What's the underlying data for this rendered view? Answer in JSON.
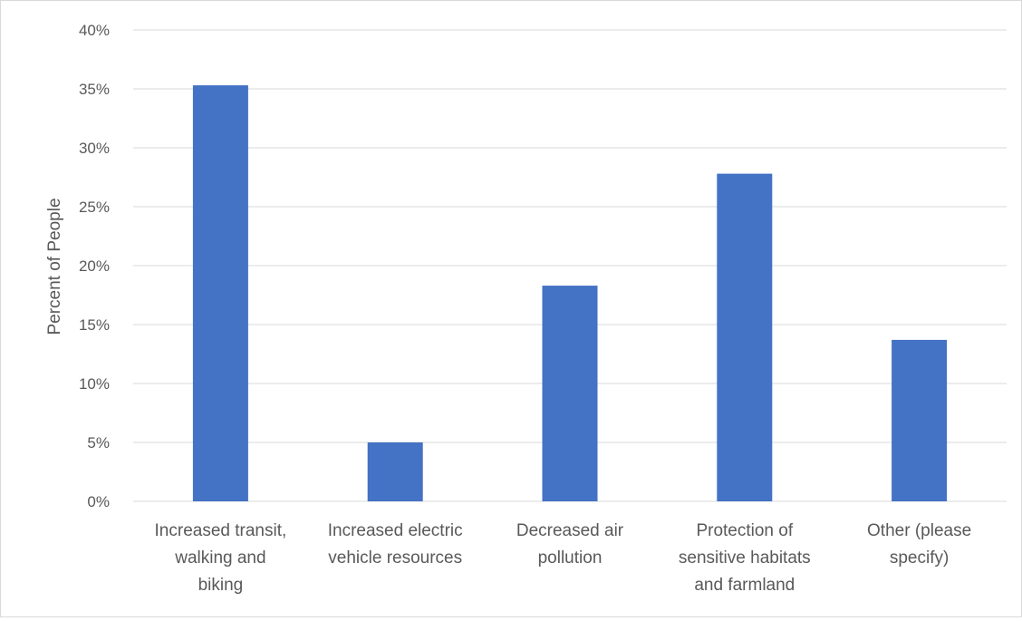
{
  "chart_data": {
    "type": "bar",
    "title": "",
    "xlabel": "",
    "ylabel": "Percent of People",
    "ylim": [
      0,
      40
    ],
    "yticks": [
      "0%",
      "5%",
      "10%",
      "15%",
      "20%",
      "25%",
      "30%",
      "35%",
      "40%"
    ],
    "grid": true,
    "legend": "none",
    "bar_color": "#4472c4",
    "grid_color": "#d9d9d9",
    "categories": [
      [
        "Increased transit,",
        "walking and",
        "biking"
      ],
      [
        "Increased electric",
        "vehicle resources"
      ],
      [
        "Decreased air",
        "pollution"
      ],
      [
        "Protection of",
        "sensitive habitats",
        "and farmland"
      ],
      [
        "Other (please",
        "specify)"
      ]
    ],
    "values": [
      35.3,
      5.0,
      18.3,
      27.8,
      13.7
    ]
  }
}
